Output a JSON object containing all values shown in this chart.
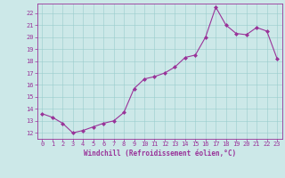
{
  "x": [
    0,
    1,
    2,
    3,
    4,
    5,
    6,
    7,
    8,
    9,
    10,
    11,
    12,
    13,
    14,
    15,
    16,
    17,
    18,
    19,
    20,
    21,
    22,
    23
  ],
  "y": [
    13.6,
    13.3,
    12.8,
    12.0,
    12.2,
    12.5,
    12.8,
    13.0,
    13.7,
    15.7,
    16.5,
    16.7,
    17.0,
    17.5,
    18.3,
    18.5,
    20.0,
    22.5,
    21.0,
    20.3,
    20.2,
    20.8,
    20.5,
    18.2
  ],
  "line_color": "#993399",
  "marker": "D",
  "marker_size": 2.0,
  "bg_color": "#cce8e8",
  "grid_color": "#99cccc",
  "xlabel": "Windchill (Refroidissement éolien,°C)",
  "xlim": [
    -0.5,
    23.5
  ],
  "ylim": [
    11.5,
    22.8
  ],
  "yticks": [
    12,
    13,
    14,
    15,
    16,
    17,
    18,
    19,
    20,
    21,
    22
  ],
  "xticks": [
    0,
    1,
    2,
    3,
    4,
    5,
    6,
    7,
    8,
    9,
    10,
    11,
    12,
    13,
    14,
    15,
    16,
    17,
    18,
    19,
    20,
    21,
    22,
    23
  ],
  "tick_color": "#993399",
  "label_color": "#993399",
  "spine_color": "#993399",
  "tick_fontsize": 5.0,
  "xlabel_fontsize": 5.5,
  "linewidth": 0.8
}
